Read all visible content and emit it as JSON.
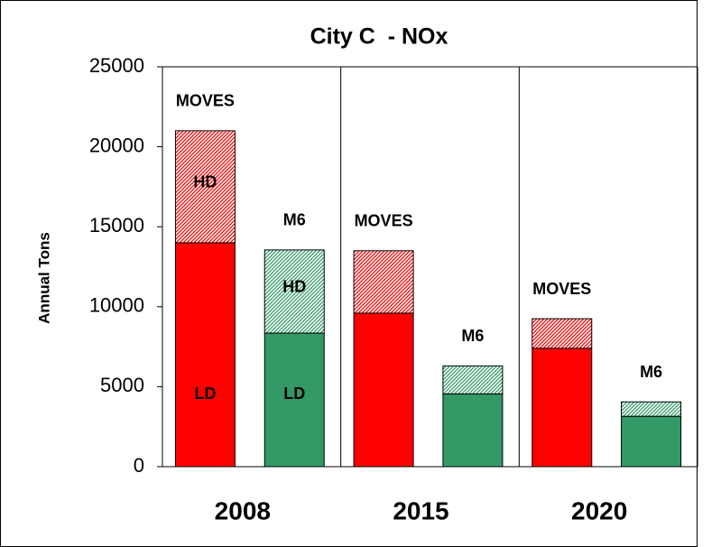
{
  "chart_data": {
    "type": "grouped_stacked_bar",
    "title": "City C  - NOx",
    "y_label": "Annual Tons",
    "groups": [
      "2008",
      "2015",
      "2020"
    ],
    "bar_labels": [
      "MOVES",
      "M6",
      "MOVES",
      "M6",
      "MOVES",
      "M6"
    ],
    "bar_colors": [
      "#ff0000",
      "#339966",
      "#ff0000",
      "#339966",
      "#ff0000",
      "#339966"
    ],
    "series": [
      {
        "name": "LD",
        "pattern": "solid",
        "values": [
          14000,
          8350,
          9600,
          4550,
          7400,
          3150
        ]
      },
      {
        "name": "HD",
        "pattern": "hatch",
        "values": [
          7000,
          5200,
          3900,
          1750,
          1850,
          900
        ]
      }
    ],
    "ylim": [
      0,
      25000
    ],
    "yticks": [
      0,
      5000,
      10000,
      15000,
      20000,
      25000
    ],
    "grid": false
  }
}
